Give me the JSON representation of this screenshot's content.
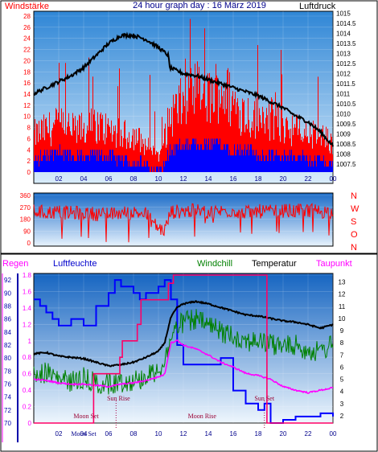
{
  "chart_data": [
    {
      "type": "line",
      "title": "24 hour graph day : 16 März 2019",
      "left_label": "Windstärke",
      "right_label": "Luftdruck",
      "x_ticks": [
        "02",
        "04",
        "06",
        "08",
        "10",
        "12",
        "14",
        "16",
        "18",
        "20",
        "22",
        "00"
      ],
      "y_left_ticks": [
        "0",
        "2",
        "4",
        "6",
        "8",
        "10",
        "12",
        "14",
        "16",
        "18",
        "20",
        "22",
        "24",
        "26",
        "28"
      ],
      "y_left_range": [
        0,
        28
      ],
      "y_right_ticks": [
        "1007.5",
        "1008",
        "1008.5",
        "1009",
        "1009.5",
        "1010",
        "1010.5",
        "1011",
        "1011.5",
        "1012",
        "1012.5",
        "1013",
        "1013.5",
        "1014",
        "1014.5",
        "1015"
      ],
      "y_right_range": [
        1007.1,
        1015.1
      ],
      "series": [
        {
          "color": "#000000",
          "axis": "right",
          "x": [
            0,
            1,
            2,
            3,
            4,
            5,
            6,
            7,
            8,
            9,
            10,
            10.8,
            10.9,
            12,
            13,
            14,
            15,
            16,
            17,
            18,
            19,
            20,
            21,
            22,
            23,
            24
          ],
          "y": [
            1011.0,
            1011.3,
            1011.6,
            1011.9,
            1012.3,
            1012.9,
            1013.5,
            1013.9,
            1013.9,
            1013.7,
            1013.3,
            1012.9,
            1012.3,
            1012.0,
            1011.9,
            1011.7,
            1011.5,
            1011.3,
            1011.1,
            1010.9,
            1010.6,
            1010.3,
            1009.9,
            1009.6,
            1009.1,
            1008.4
          ]
        },
        {
          "color": "#ff0000",
          "axis": "left",
          "x": [
            0,
            1,
            2,
            3,
            4,
            5,
            6,
            7,
            8,
            9,
            10,
            11,
            12,
            13,
            14,
            15,
            16,
            17,
            18,
            19,
            20,
            21,
            22,
            23,
            24
          ],
          "y": [
            7,
            8,
            9,
            8,
            8,
            9,
            8,
            7,
            7,
            5,
            3,
            11,
            13,
            15,
            14,
            16,
            13,
            11,
            10,
            10,
            9,
            8,
            7,
            7,
            5
          ]
        },
        {
          "color": "#0000ff",
          "axis": "left",
          "x": [
            0,
            1,
            2,
            3,
            4,
            5,
            6,
            7,
            8,
            9,
            10,
            11,
            12,
            13,
            14,
            15,
            16,
            17,
            18,
            19,
            20,
            21,
            22,
            23,
            24
          ],
          "y": [
            2,
            3,
            4,
            3,
            3,
            3,
            3,
            2,
            2,
            1,
            0,
            4,
            5,
            5,
            5,
            5,
            4,
            4,
            3,
            3,
            3,
            3,
            2,
            2,
            1
          ]
        }
      ]
    },
    {
      "type": "scatter",
      "y_left_ticks": [
        "0",
        "90",
        "180",
        "270",
        "360"
      ],
      "y_range": [
        0,
        360
      ],
      "compass_labels": [
        "N",
        "W",
        "S",
        "O",
        "N"
      ],
      "series": [
        {
          "color": "#ff0000",
          "x": [
            0,
            1,
            2,
            3,
            4,
            5,
            6,
            7,
            8,
            9,
            10,
            10.5,
            11,
            12,
            13,
            14,
            15,
            16,
            17,
            18,
            19,
            20,
            21,
            22,
            23,
            24
          ],
          "y": [
            240,
            230,
            235,
            225,
            230,
            220,
            215,
            225,
            230,
            220,
            110,
            95,
            235,
            240,
            245,
            235,
            240,
            245,
            230,
            240,
            235,
            245,
            240,
            250,
            240,
            235
          ]
        }
      ]
    },
    {
      "type": "line",
      "labels": {
        "regen": "Regen",
        "luftfeuchte": "Luftfeuchte",
        "windchill": "Windchill",
        "temperatur": "Temperatur",
        "taupunkt": "Taupunkt"
      },
      "x_ticks": [
        "02",
        "04",
        "06",
        "08",
        "10",
        "12",
        "14",
        "16",
        "18",
        "20",
        "22",
        "00"
      ],
      "y_regen_ticks": [
        "0",
        "0.2",
        "0.4",
        "0.6",
        "0.8",
        "1",
        "1.2",
        "1.4",
        "1.6",
        "1.8"
      ],
      "y_humidity_ticks": [
        "70",
        "72",
        "74",
        "76",
        "78",
        "80",
        "82",
        "84",
        "86",
        "88",
        "90",
        "92"
      ],
      "y_temp_ticks": [
        "2",
        "3",
        "4",
        "5",
        "6",
        "7",
        "8",
        "9",
        "10",
        "11",
        "12",
        "13"
      ],
      "regen_range": [
        0,
        1.8
      ],
      "humidity_range": [
        70,
        93
      ],
      "temp_range": [
        1.4,
        13.7
      ],
      "series": [
        {
          "name": "Luftfeuchte",
          "color": "#0000ff",
          "axis": "humidity",
          "x": [
            0,
            0.5,
            1,
            1.5,
            2,
            3,
            4,
            5,
            6,
            6.5,
            7,
            8,
            8.5,
            9,
            10,
            10.5,
            11,
            11.5,
            12,
            13,
            14,
            15,
            16,
            17,
            18,
            18.5,
            19,
            20,
            21,
            22,
            23,
            24
          ],
          "y": [
            89,
            88,
            87,
            86,
            85,
            86,
            85,
            88,
            90,
            92,
            91,
            90,
            89,
            90,
            91,
            92,
            89,
            82,
            79,
            79,
            79,
            80,
            75,
            73,
            72,
            73,
            70,
            70.5,
            71,
            71,
            71.5,
            71
          ]
        },
        {
          "name": "Temperatur",
          "color": "#000000",
          "axis": "temp",
          "x": [
            0,
            1,
            2,
            3,
            4,
            5,
            6,
            7,
            8,
            9,
            10,
            10.5,
            11,
            11.5,
            12,
            13,
            14,
            15,
            16,
            17,
            18,
            19,
            20,
            21,
            22,
            23,
            24
          ],
          "y": [
            7.1,
            7.2,
            6.9,
            6.8,
            6.7,
            6.4,
            6.1,
            6.2,
            6.4,
            6.8,
            7.3,
            8.0,
            10.1,
            10.9,
            11.2,
            11.4,
            11.2,
            10.9,
            10.6,
            10.3,
            10.2,
            10.0,
            9.8,
            9.7,
            9.5,
            9.2,
            9.5
          ]
        },
        {
          "name": "Windchill",
          "color": "#008000",
          "axis": "temp",
          "x": [
            0,
            1,
            2,
            3,
            4,
            5,
            6,
            7,
            8,
            9,
            10,
            10.5,
            11,
            11.5,
            12,
            13,
            14,
            15,
            16,
            17,
            18,
            19,
            20,
            21,
            22,
            23,
            24
          ],
          "y": [
            5.9,
            6.2,
            5.6,
            5.4,
            5.7,
            5.3,
            5.2,
            5.4,
            5.5,
            5.8,
            6.4,
            7.0,
            9.0,
            9.9,
            10.3,
            10.5,
            10.0,
            9.5,
            9.2,
            8.8,
            8.7,
            8.5,
            8.3,
            8.4,
            8.0,
            7.8,
            8.6
          ]
        },
        {
          "name": "Taupunkt",
          "color": "#ff00ff",
          "axis": "temp",
          "x": [
            0,
            1,
            2,
            3,
            4,
            5,
            6,
            7,
            8,
            9,
            10,
            10.5,
            11,
            11.5,
            12,
            13,
            14,
            15,
            16,
            17,
            18,
            19,
            20,
            21,
            22,
            23,
            24
          ],
          "y": [
            5.0,
            4.9,
            4.7,
            4.6,
            4.6,
            4.5,
            4.4,
            4.6,
            4.7,
            4.9,
            5.2,
            5.4,
            8.0,
            8.2,
            7.8,
            7.5,
            7.0,
            6.4,
            6.0,
            5.5,
            5.3,
            5.0,
            4.4,
            4.1,
            3.9,
            4.1,
            4.3
          ]
        },
        {
          "name": "Regen",
          "color": "#ff0066",
          "axis": "regen",
          "step": true,
          "x": [
            0,
            3.6,
            4.8,
            5.6,
            6.2,
            6.9,
            7.1,
            7.7,
            8.3,
            8.6,
            9.4,
            10.2,
            10.8,
            11.2,
            11.6,
            12.2,
            13.4,
            14.6,
            15.8,
            17,
            18.4,
            18.7,
            24
          ],
          "y": [
            0,
            0,
            0.6,
            0.6,
            0.6,
            0.8,
            1.0,
            1.0,
            1.2,
            1.5,
            1.5,
            1.5,
            1.7,
            1.8,
            1.8,
            1.8,
            1.8,
            1.8,
            1.8,
            1.8,
            1.8,
            0,
            0
          ]
        }
      ],
      "annotations": [
        {
          "text": "Moon Set",
          "x": 4.2,
          "row": "upper"
        },
        {
          "text": "Sun Rise",
          "x": 6.8,
          "row": "upper"
        },
        {
          "text": "Moon Rise",
          "x": 13.5,
          "row": "upper"
        },
        {
          "text": "Sun Set",
          "x": 18.5,
          "row": "upper"
        },
        {
          "text": "Moon Set",
          "x": 4.0,
          "row": "axis"
        }
      ],
      "event_markers_x": [
        6.6,
        18.5
      ]
    }
  ]
}
